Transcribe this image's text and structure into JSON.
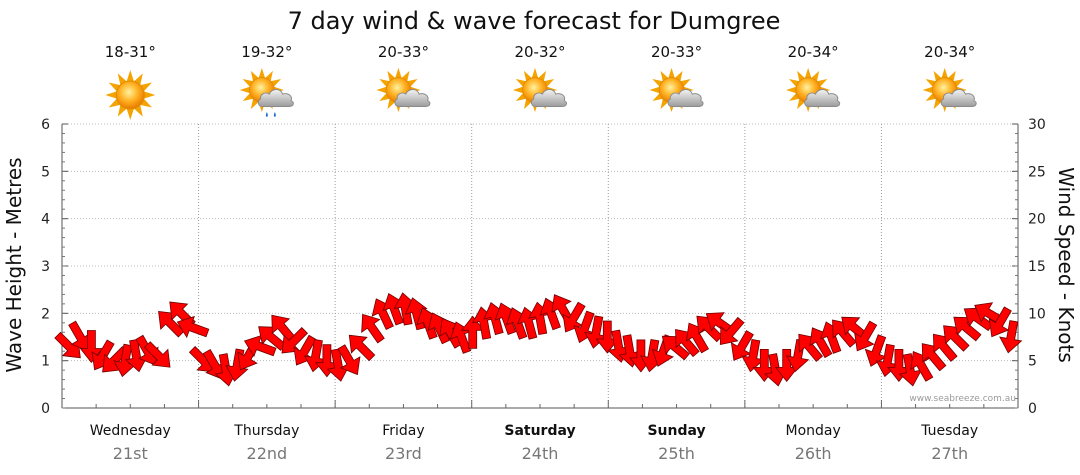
{
  "chart_data": {
    "type": "line",
    "title": "7 day wind & wave forecast for Dumgree",
    "ylabel_left": "Wave Height - Metres",
    "ylabel_right": "Wind Speed - Knots",
    "ylim_left": [
      0,
      6
    ],
    "ylim_right": [
      0,
      30
    ],
    "yticks_left": [
      "0",
      "1",
      "2",
      "3",
      "4",
      "5",
      "6"
    ],
    "yticks_right": [
      "0",
      "5",
      "10",
      "15",
      "20",
      "25",
      "30"
    ],
    "grid": true,
    "watermark": "www.seabreeze.com.au",
    "arrow_color": "#ff0000",
    "days": [
      {
        "name": "Wednesday",
        "date": "21st",
        "bold": false,
        "temp": "18-31°",
        "icon": "sunny-icon"
      },
      {
        "name": "Thursday",
        "date": "22nd",
        "bold": false,
        "temp": "19-32°",
        "icon": "showers-icon"
      },
      {
        "name": "Friday",
        "date": "23rd",
        "bold": false,
        "temp": "20-33°",
        "icon": "partly-cloudy-icon"
      },
      {
        "name": "Saturday",
        "date": "24th",
        "bold": true,
        "temp": "20-32°",
        "icon": "partly-cloudy-icon"
      },
      {
        "name": "Sunday",
        "date": "25th",
        "bold": true,
        "temp": "20-33°",
        "icon": "partly-cloudy-icon"
      },
      {
        "name": "Monday",
        "date": "26th",
        "bold": false,
        "temp": "20-34°",
        "icon": "partly-cloudy-icon"
      },
      {
        "name": "Tuesday",
        "date": "27th",
        "bold": false,
        "temp": "20-34°",
        "icon": "partly-cloudy-icon"
      }
    ],
    "series": [
      {
        "name": "Wind",
        "unit": "knots",
        "values": [
          6.5,
          7.5,
          6.5,
          5.5,
          5.0,
          5.0,
          5.5,
          6.0,
          5.5,
          9.0,
          10.0,
          8.5,
          5.0,
          4.5,
          4.0,
          4.5,
          5.5,
          6.5,
          7.5,
          8.5,
          7.0,
          6.0,
          5.5,
          5.0,
          4.5,
          5.0,
          6.5,
          8.5,
          10.0,
          10.5,
          10.5,
          10.0,
          9.0,
          8.5,
          8.0,
          7.5,
          8.0,
          9.0,
          9.5,
          9.5,
          9.0,
          9.0,
          9.5,
          10.0,
          10.5,
          9.5,
          8.5,
          8.0,
          7.5,
          6.5,
          6.0,
          5.5,
          5.5,
          6.0,
          6.5,
          7.0,
          7.5,
          8.5,
          9.0,
          8.0,
          6.5,
          5.5,
          4.5,
          4.0,
          4.5,
          5.5,
          6.5,
          7.0,
          7.5,
          8.0,
          8.5,
          7.5,
          6.0,
          5.0,
          4.5,
          4.0,
          4.5,
          5.5,
          6.5,
          7.5,
          8.5,
          9.5,
          10.0,
          9.0,
          7.5
        ],
        "direction_deg": [
          45,
          60,
          90,
          120,
          135,
          100,
          80,
          60,
          45,
          225,
          225,
          200,
          45,
          60,
          80,
          100,
          120,
          200,
          220,
          230,
          135,
          120,
          100,
          90,
          80,
          60,
          225,
          235,
          245,
          250,
          260,
          255,
          250,
          245,
          240,
          250,
          270,
          260,
          255,
          250,
          250,
          255,
          260,
          250,
          240,
          120,
          110,
          100,
          90,
          80,
          80,
          90,
          100,
          110,
          220,
          230,
          240,
          225,
          215,
          130,
          120,
          100,
          90,
          80,
          90,
          100,
          230,
          240,
          250,
          230,
          220,
          120,
          110,
          100,
          90,
          80,
          240,
          230,
          230,
          225,
          220,
          215,
          210,
          120,
          100
        ]
      }
    ]
  }
}
